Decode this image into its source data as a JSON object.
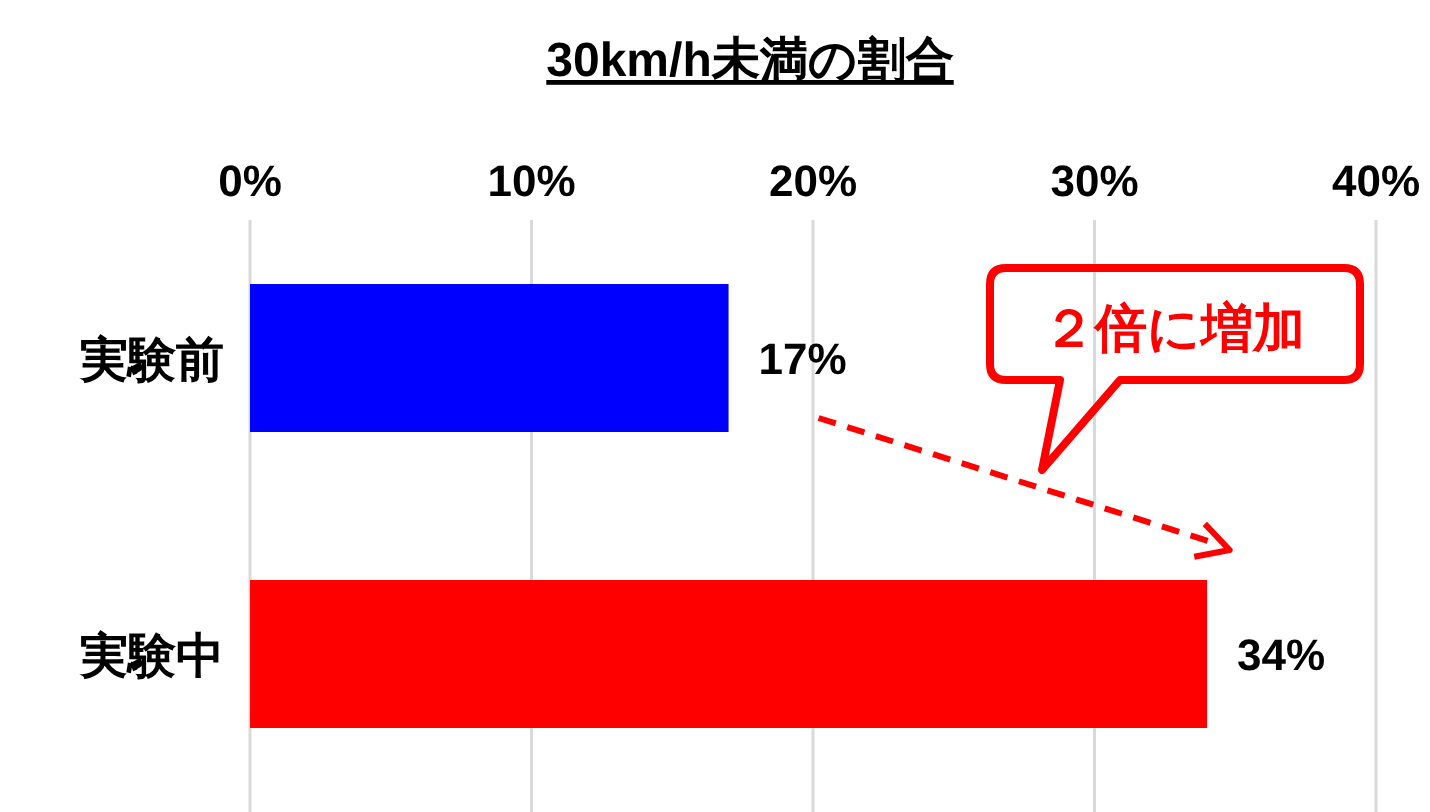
{
  "chart_data": {
    "type": "bar",
    "orientation": "horizontal",
    "title": "30km/h未満の割合",
    "categories": [
      "実験前",
      "実験中"
    ],
    "values": [
      17,
      34
    ],
    "colors": [
      "#0000ff",
      "#ff0000"
    ],
    "value_labels": [
      "17%",
      "34%"
    ],
    "xlim": [
      0,
      40
    ],
    "xticks": [
      {
        "value": 0,
        "label": "0%"
      },
      {
        "value": 10,
        "label": "10%"
      },
      {
        "value": 20,
        "label": "20%"
      },
      {
        "value": 30,
        "label": "30%"
      },
      {
        "value": 40,
        "label": "40%"
      }
    ],
    "grid": "x",
    "annotations": [
      "２倍に増加"
    ]
  }
}
